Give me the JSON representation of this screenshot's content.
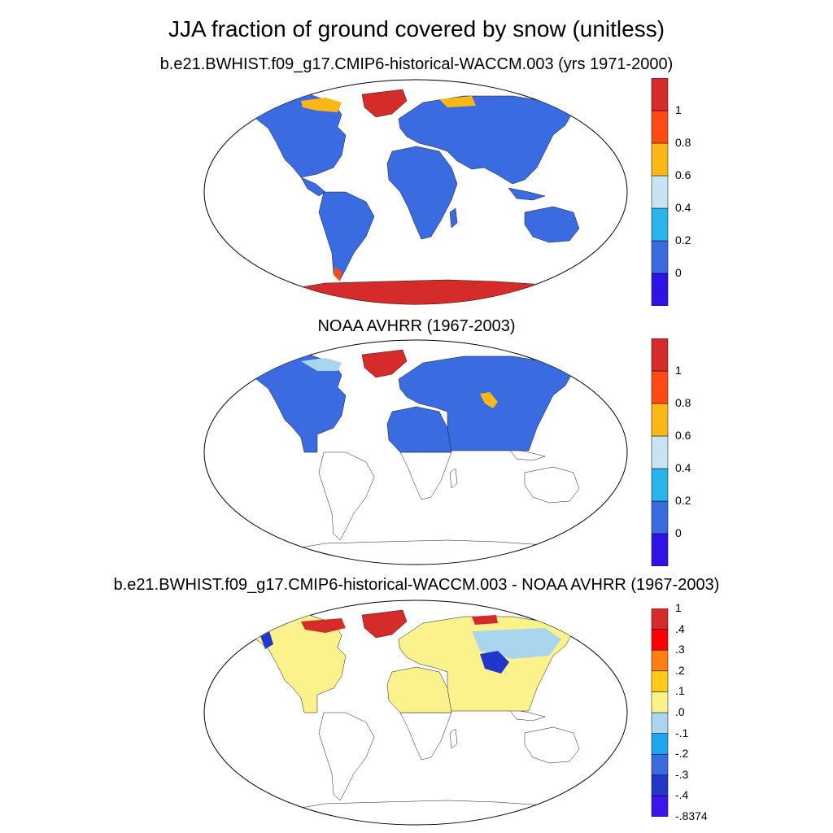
{
  "title": "JJA fraction of ground covered by snow (unitless)",
  "panels": [
    {
      "id": "model",
      "title": "b.e21.BWHIST.f09_g17.CMIP6-historical-WACCM.003 (yrs 1971-2000)",
      "colorbar": {
        "labels": [
          "1",
          "0.8",
          "0.6",
          "0.4",
          "0.2",
          "0"
        ],
        "colors": [
          "#2f12e6",
          "#3a6be0",
          "#2ab4ec",
          "#c8e4f0",
          "#fbb716",
          "#ff4a12",
          "#d52b2b"
        ]
      }
    },
    {
      "id": "obs",
      "title": "NOAA AVHRR (1967-2003)",
      "colorbar": {
        "labels": [
          "1",
          "0.8",
          "0.6",
          "0.4",
          "0.2",
          "0"
        ],
        "colors": [
          "#2f12e6",
          "#3a6be0",
          "#2ab4ec",
          "#c8e4f0",
          "#fbb716",
          "#ff4a12",
          "#d52b2b"
        ]
      }
    },
    {
      "id": "diff",
      "title": "b.e21.BWHIST.f09_g17.CMIP6-historical-WACCM.003 - NOAA AVHRR (1967-2003)",
      "colorbar": {
        "labels": [
          "1",
          ".4",
          ".3",
          ".2",
          ".1",
          ".0",
          "-.1",
          "-.2",
          "-.3",
          "-.4",
          "-.8374"
        ],
        "colors": [
          "#3c14ee",
          "#2237c9",
          "#3a6be0",
          "#1ea6ee",
          "#a9d6ee",
          "#fbf28c",
          "#ffcb16",
          "#ff7f10",
          "#ff0000",
          "#d52b2b"
        ]
      }
    }
  ],
  "fill_colors": {
    "land": "#3a6be0",
    "snow_full": "#d52b2b",
    "snow_high": "#ff4a12",
    "snow_mid": "#fbb716",
    "diff_neutral": "#fbf28c",
    "diff_neg_light": "#a9d6ee",
    "diff_neg_strong": "#2237c9",
    "diff_pos_strong": "#d52b2b"
  }
}
